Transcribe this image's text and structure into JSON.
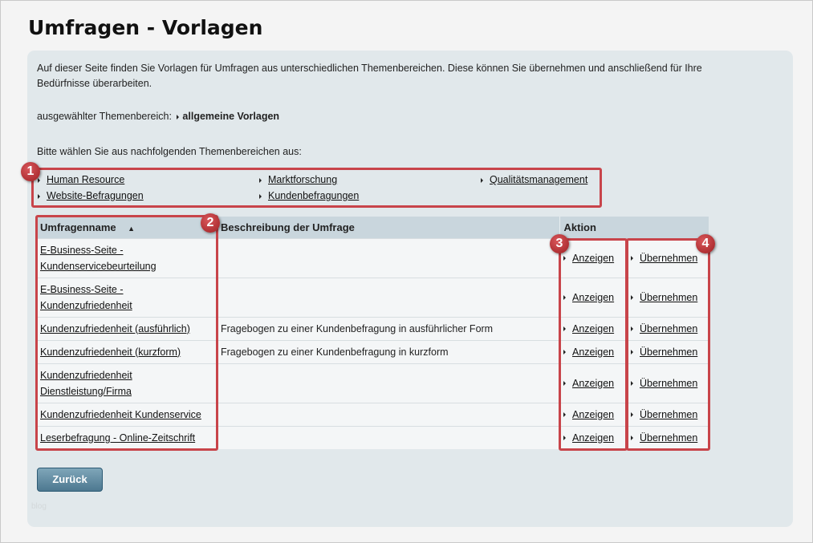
{
  "title": "Umfragen - Vorlagen",
  "intro": "Auf dieser Seite finden Sie Vorlagen für Umfragen aus unterschiedlichen Themenbereichen. Diese können Sie übernehmen und anschließend für Ihre Bedürfnisse überarbeiten.",
  "selected_label": "ausgewählter Themenbereich:",
  "selected_value": "allgemeine Vorlagen",
  "choose_text": "Bitte wählen Sie aus nachfolgenden Themenbereichen aus:",
  "categories": [
    "Human Resource",
    "Marktforschung",
    "Qualitätsmanagement",
    "Website-Befragungen",
    "Kundenbefragungen"
  ],
  "table": {
    "headers": {
      "name": "Umfragenname",
      "sort": "▲",
      "desc": "Beschreibung der Umfrage",
      "action": "Aktion"
    },
    "view_label": "Anzeigen",
    "adopt_label": "Übernehmen",
    "rows": [
      {
        "name": "E-Business-Seite - Kundenservicebeurteilung",
        "desc": ""
      },
      {
        "name": "E-Business-Seite - Kundenzufriedenheit",
        "desc": ""
      },
      {
        "name": "Kundenzufriedenheit (ausführlich)",
        "desc": "Fragebogen zu einer Kundenbefragung in ausführlicher Form"
      },
      {
        "name": "Kundenzufriedenheit (kurzform)",
        "desc": "Fragebogen zu einer Kundenbefragung in kurzform"
      },
      {
        "name": "Kundenzufriedenheit Dienstleistung/Firma",
        "desc": ""
      },
      {
        "name": "Kundenzufriedenheit Kundenservice",
        "desc": ""
      },
      {
        "name": "Leserbefragung - Online-Zeitschrift",
        "desc": ""
      }
    ]
  },
  "badges": [
    "1",
    "2",
    "3",
    "4"
  ],
  "back_label": "Zurück",
  "watermark": "blog",
  "colors": {
    "highlight": "#c8444a",
    "panel": "#e1e8eb",
    "header": "#c9d6dd",
    "button": "#4d7890"
  }
}
